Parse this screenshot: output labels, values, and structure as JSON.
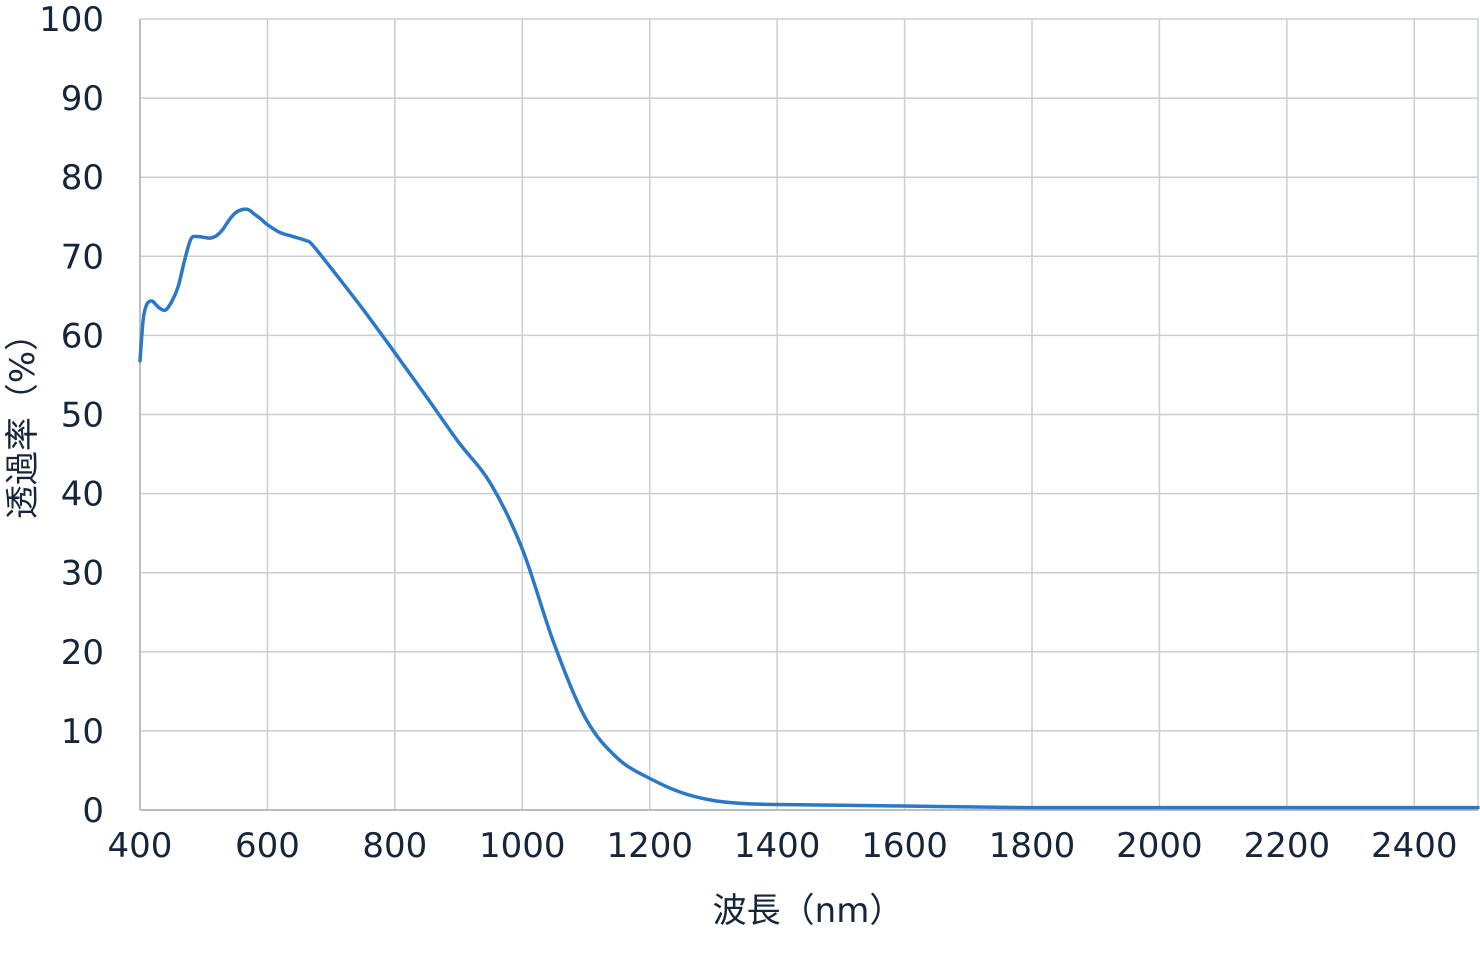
{
  "chart_data": {
    "type": "line",
    "title": "",
    "xlabel": "波長（nm）",
    "ylabel": "透過率（%）",
    "xlim": [
      400,
      2500
    ],
    "ylim": [
      0,
      100
    ],
    "x_ticks": [
      400,
      600,
      800,
      1000,
      1200,
      1400,
      1600,
      1800,
      2000,
      2200,
      2400
    ],
    "y_ticks": [
      0,
      10,
      20,
      30,
      40,
      50,
      60,
      70,
      80,
      90,
      100
    ],
    "grid": true,
    "colors": {
      "series": "#2b78c7",
      "grid": "#c9ced3",
      "axis": "#b8bec4",
      "text": "#16263a"
    },
    "series": [
      {
        "x": [
          400,
          405,
          410,
          415,
          420,
          430,
          440,
          450,
          460,
          470,
          480,
          490,
          500,
          510,
          520,
          530,
          540,
          550,
          560,
          570,
          580,
          590,
          600,
          620,
          640,
          660,
          670,
          700,
          750,
          800,
          850,
          900,
          950,
          1000,
          1050,
          1100,
          1150,
          1200,
          1250,
          1300,
          1350,
          1400,
          1500,
          1600,
          1700,
          1800,
          1900,
          2000,
          2100,
          2200,
          2300,
          2400,
          2500
        ],
        "y": [
          56.8,
          62,
          63.8,
          64.3,
          64.3,
          63.5,
          63.2,
          64.3,
          66.2,
          69.5,
          72.2,
          72.5,
          72.4,
          72.3,
          72.6,
          73.4,
          74.6,
          75.5,
          75.9,
          75.9,
          75.3,
          74.7,
          74.0,
          73.0,
          72.5,
          72.0,
          71.5,
          68.5,
          63.3,
          57.8,
          52.2,
          46.5,
          41.3,
          33.0,
          21.0,
          11.5,
          6.5,
          4.0,
          2.2,
          1.2,
          0.8,
          0.7,
          0.6,
          0.5,
          0.4,
          0.3,
          0.3,
          0.3,
          0.3,
          0.3,
          0.3,
          0.3,
          0.3
        ]
      }
    ]
  }
}
